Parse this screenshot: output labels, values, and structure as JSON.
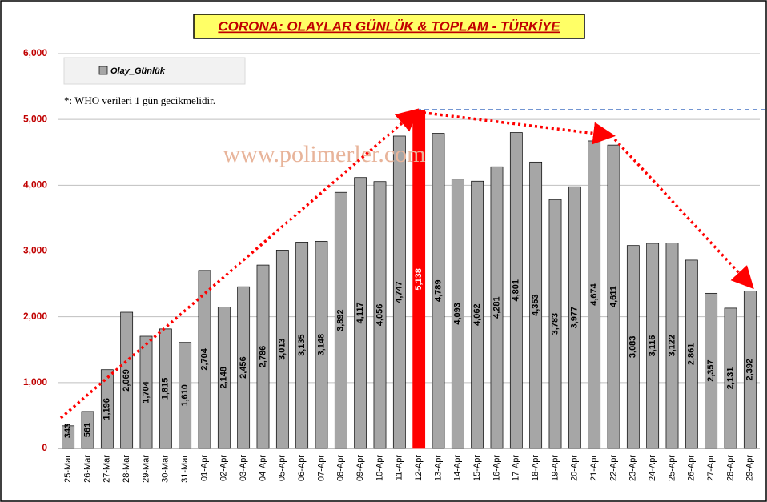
{
  "chart_data": {
    "type": "bar",
    "title": "CORONA: OLAYLAR GÜNLÜK & TOPLAM - TÜRKİYE",
    "annotations": [
      "*: WHO verileri  1 gün  gecikmelidir.",
      "www.polimerler.com"
    ],
    "legend": "top-left",
    "grid": true,
    "categories": [
      "25-Mar",
      "26-Mar",
      "27-Mar",
      "28-Mar",
      "29-Mar",
      "30-Mar",
      "31-Mar",
      "01-Apr",
      "02-Apr",
      "03-Apr",
      "04-Apr",
      "05-Apr",
      "06-Apr",
      "07-Apr",
      "08-Apr",
      "09-Apr",
      "10-Apr",
      "11-Apr",
      "12-Apr",
      "13-Apr",
      "14-Apr",
      "15-Apr",
      "16-Apr",
      "17-Apr",
      "18-Apr",
      "19-Apr",
      "20-Apr",
      "21-Apr",
      "22-Apr",
      "23-Apr",
      "24-Apr",
      "25-Apr",
      "26-Apr",
      "27-Apr",
      "28-Apr",
      "29-Apr"
    ],
    "series": [
      {
        "name": "Olay_Günlük",
        "color": "#a6a6a6",
        "colors": [
          "#a6a6a6",
          "#a6a6a6",
          "#a6a6a6",
          "#a6a6a6",
          "#a6a6a6",
          "#a6a6a6",
          "#a6a6a6",
          "#a6a6a6",
          "#a6a6a6",
          "#a6a6a6",
          "#a6a6a6",
          "#a6a6a6",
          "#a6a6a6",
          "#a6a6a6",
          "#a6a6a6",
          "#a6a6a6",
          "#a6a6a6",
          "#a6a6a6",
          "#ff0000",
          "#a6a6a6",
          "#a6a6a6",
          "#a6a6a6",
          "#a6a6a6",
          "#a6a6a6",
          "#a6a6a6",
          "#a6a6a6",
          "#a6a6a6",
          "#a6a6a6",
          "#a6a6a6",
          "#a6a6a6",
          "#a6a6a6",
          "#a6a6a6",
          "#a6a6a6",
          "#a6a6a6",
          "#a6a6a6",
          "#a6a6a6"
        ],
        "values": [
          343,
          561,
          1196,
          2069,
          1704,
          1815,
          1610,
          2704,
          2148,
          2456,
          2786,
          3013,
          3135,
          3148,
          3892,
          4117,
          4056,
          4747,
          5138,
          4789,
          4093,
          4062,
          4281,
          4801,
          4353,
          3783,
          3977,
          4674,
          4611,
          3083,
          3116,
          3122,
          2861,
          2357,
          2131,
          2392
        ],
        "value_labels": [
          "343",
          "561",
          "1,196",
          "2,069",
          "1,704",
          "1,815",
          "1,610",
          "2,704",
          "2,148",
          "2,456",
          "2,786",
          "3,013",
          "3,135",
          "3,148",
          "3,892",
          "4,117",
          "4,056",
          "4,747",
          "5,138",
          "4,789",
          "4,093",
          "4,062",
          "4,281",
          "4,801",
          "4,353",
          "3,783",
          "3,977",
          "4,674",
          "4,611",
          "3,083",
          "3,116",
          "3,122",
          "2,861",
          "2,357",
          "2,131",
          "2,392"
        ]
      }
    ],
    "ylim": [
      0,
      6000
    ],
    "yticks": [
      0,
      {
        "value": 1000,
        "label": "1,000"
      },
      {
        "value": 2000,
        "label": "2,000"
      },
      {
        "value": 3000,
        "label": "3,000"
      },
      {
        "value": 4000,
        "label": "4,000"
      },
      {
        "value": 5000,
        "label": "5,000"
      },
      {
        "value": 6000,
        "label": "6,000"
      }
    ]
  }
}
